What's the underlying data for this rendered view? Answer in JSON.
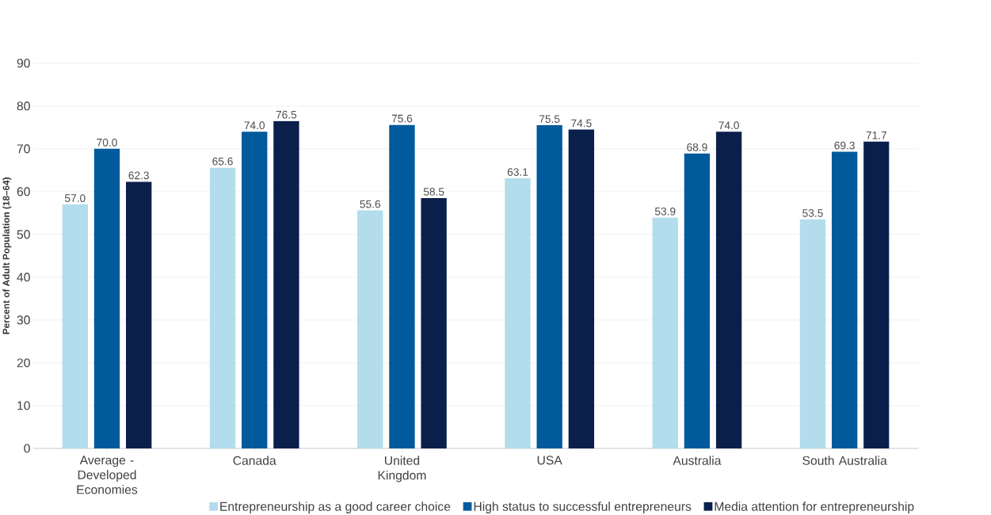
{
  "chart_data": {
    "type": "bar",
    "ylabel": "Percent of Adult Population (18–64)",
    "categories": [
      "Average - Developed Economies",
      "Canada",
      "United Kingdom",
      "USA",
      "Australia",
      "South Australia"
    ],
    "series": [
      {
        "name": "Entrepreneurship as a good career choice",
        "color": "#b3dcec",
        "values": [
          57.0,
          65.6,
          55.6,
          63.1,
          53.9,
          53.5
        ],
        "value_labels": [
          "57.0",
          "65.6",
          "55.6",
          "63.1",
          "53.9",
          "53.5"
        ]
      },
      {
        "name": "High status to successful entrepreneurs",
        "color": "#005a9c",
        "values": [
          70.0,
          74.0,
          75.6,
          75.5,
          68.9,
          69.3
        ],
        "value_labels": [
          "70.0",
          "74.0",
          "75.6",
          "75.5",
          "68.9",
          "69.3"
        ]
      },
      {
        "name": "Media attention for entrepreneurship",
        "color": "#0b1f4b",
        "values": [
          62.3,
          76.5,
          58.5,
          74.5,
          74.0,
          71.7
        ],
        "value_labels": [
          "62.3",
          "76.5",
          "58.5",
          "74.5",
          "74.0",
          "71.7"
        ]
      }
    ],
    "ylim": [
      0,
      90
    ],
    "yticks": [
      0,
      10,
      20,
      30,
      40,
      50,
      60,
      70,
      80,
      90
    ],
    "grid": "y",
    "legend": "bottom right"
  }
}
